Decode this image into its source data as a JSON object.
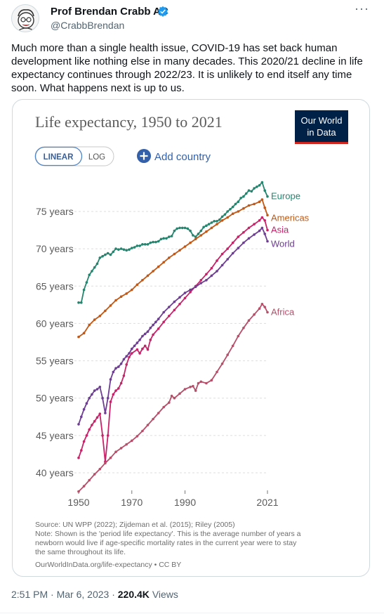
{
  "tweet": {
    "author_name": "Prof Brendan Crabb AC",
    "author_handle": "@CrabbBrendan",
    "text": "Much more than a single health issue, COVID-19 has set back human development like nothing else in many decades. This 2020/21 decline in life expectancy continues through 2022/23. It is unlikely to end itself any time soon. What happens next is up to us.",
    "time": "2:51 PM",
    "separator": "·",
    "date": "Mar 6, 2023",
    "views_count": "220.4K",
    "views_label": "Views",
    "more_icon": "more-horizontal-icon",
    "verified_color": "#1d9bf0"
  },
  "chart_card": {
    "logo_line1": "Our World",
    "logo_line2": "in Data",
    "logo_bg": "#002147",
    "logo_accent": "#ce261e",
    "toggle_linear": "LINEAR",
    "toggle_log": "LOG",
    "add_country": "Add country",
    "add_country_color": "#3360a9",
    "source_line": "Source: UN WPP (2022); Zijdeman et al. (2015); Riley (2005)",
    "note_lines": [
      "Note: Shown is the 'period life expectancy'. This is the average number of years a",
      "newborn would live if age-specific mortality rates in the current year were to stay",
      "the same throughout its life."
    ],
    "footer": "OurWorldInData.org/life-expectancy • CC BY"
  },
  "chart_data": {
    "type": "line",
    "title": "Life expectancy, 1950 to 2021",
    "scale": "linear",
    "grid": true,
    "xlim": [
      1950,
      2021
    ],
    "ylim": [
      37,
      80
    ],
    "x_ticks": [
      1950,
      1970,
      1990,
      2021
    ],
    "x_tick_labels": [
      "1950",
      "1970",
      "1990",
      "2021"
    ],
    "y_ticks": [
      40,
      45,
      50,
      55,
      60,
      65,
      70,
      75
    ],
    "y_tick_labels": [
      "40 years",
      "45 years",
      "50 years",
      "55 years",
      "60 years",
      "65 years",
      "70 years",
      "75 years"
    ],
    "legend_placement": "right-end-labels",
    "series": [
      {
        "name": "Europe",
        "color": "#26856f",
        "points": [
          [
            1950,
            62.8
          ],
          [
            1951,
            62.8
          ],
          [
            1952,
            64.5
          ],
          [
            1953,
            65.5
          ],
          [
            1954,
            66.5
          ],
          [
            1955,
            67.0
          ],
          [
            1956,
            67.5
          ],
          [
            1957,
            68.0
          ],
          [
            1958,
            68.8
          ],
          [
            1959,
            69.0
          ],
          [
            1960,
            69.2
          ],
          [
            1961,
            69.4
          ],
          [
            1962,
            69.2
          ],
          [
            1963,
            69.6
          ],
          [
            1964,
            70.0
          ],
          [
            1965,
            69.9
          ],
          [
            1966,
            70.0
          ],
          [
            1967,
            69.9
          ],
          [
            1968,
            69.8
          ],
          [
            1969,
            69.9
          ],
          [
            1970,
            70.1
          ],
          [
            1971,
            70.2
          ],
          [
            1972,
            70.4
          ],
          [
            1973,
            70.4
          ],
          [
            1974,
            70.6
          ],
          [
            1975,
            70.6
          ],
          [
            1976,
            70.6
          ],
          [
            1977,
            70.8
          ],
          [
            1978,
            70.9
          ],
          [
            1979,
            70.9
          ],
          [
            1980,
            71.0
          ],
          [
            1981,
            71.3
          ],
          [
            1982,
            71.4
          ],
          [
            1983,
            71.4
          ],
          [
            1984,
            71.6
          ],
          [
            1985,
            71.7
          ],
          [
            1986,
            72.4
          ],
          [
            1987,
            72.7
          ],
          [
            1988,
            72.8
          ],
          [
            1989,
            72.8
          ],
          [
            1990,
            72.8
          ],
          [
            1991,
            72.7
          ],
          [
            1992,
            72.4
          ],
          [
            1993,
            71.8
          ],
          [
            1994,
            71.6
          ],
          [
            1995,
            72.0
          ],
          [
            1996,
            72.4
          ],
          [
            1997,
            72.9
          ],
          [
            1998,
            73.1
          ],
          [
            1999,
            73.3
          ],
          [
            2000,
            73.5
          ],
          [
            2001,
            73.7
          ],
          [
            2002,
            73.7
          ],
          [
            2003,
            73.9
          ],
          [
            2004,
            74.3
          ],
          [
            2005,
            74.6
          ],
          [
            2006,
            75.0
          ],
          [
            2007,
            75.3
          ],
          [
            2008,
            75.6
          ],
          [
            2009,
            76.0
          ],
          [
            2010,
            76.3
          ],
          [
            2011,
            76.8
          ],
          [
            2012,
            77.0
          ],
          [
            2013,
            77.4
          ],
          [
            2014,
            77.8
          ],
          [
            2015,
            77.7
          ],
          [
            2016,
            78.1
          ],
          [
            2017,
            78.3
          ],
          [
            2018,
            78.5
          ],
          [
            2019,
            78.9
          ],
          [
            2020,
            77.8
          ],
          [
            2021,
            77.0
          ]
        ]
      },
      {
        "name": "Americas",
        "color": "#c05917",
        "points": [
          [
            1950,
            58.2
          ],
          [
            1952,
            58.7
          ],
          [
            1954,
            59.8
          ],
          [
            1956,
            60.5
          ],
          [
            1958,
            61.0
          ],
          [
            1960,
            61.7
          ],
          [
            1962,
            62.4
          ],
          [
            1964,
            63.1
          ],
          [
            1966,
            63.6
          ],
          [
            1968,
            64.0
          ],
          [
            1970,
            64.5
          ],
          [
            1972,
            65.2
          ],
          [
            1974,
            65.8
          ],
          [
            1976,
            66.4
          ],
          [
            1978,
            67.0
          ],
          [
            1980,
            67.6
          ],
          [
            1982,
            68.2
          ],
          [
            1984,
            68.8
          ],
          [
            1986,
            69.3
          ],
          [
            1988,
            69.8
          ],
          [
            1990,
            70.3
          ],
          [
            1992,
            70.8
          ],
          [
            1994,
            71.3
          ],
          [
            1996,
            71.8
          ],
          [
            1998,
            72.3
          ],
          [
            2000,
            72.8
          ],
          [
            2002,
            73.3
          ],
          [
            2004,
            73.8
          ],
          [
            2006,
            74.2
          ],
          [
            2008,
            74.7
          ],
          [
            2010,
            75.0
          ],
          [
            2012,
            75.4
          ],
          [
            2014,
            75.8
          ],
          [
            2016,
            76.0
          ],
          [
            2018,
            76.3
          ],
          [
            2019,
            76.6
          ],
          [
            2020,
            75.5
          ],
          [
            2021,
            74.5
          ]
        ]
      },
      {
        "name": "Asia",
        "color": "#c62369",
        "points": [
          [
            1950,
            42.0
          ],
          [
            1951,
            43.0
          ],
          [
            1952,
            44.2
          ],
          [
            1953,
            45.0
          ],
          [
            1954,
            45.8
          ],
          [
            1955,
            46.4
          ],
          [
            1956,
            46.9
          ],
          [
            1957,
            47.4
          ],
          [
            1958,
            47.9
          ],
          [
            1959,
            45.0
          ],
          [
            1960,
            41.5
          ],
          [
            1961,
            45.0
          ],
          [
            1962,
            49.5
          ],
          [
            1963,
            50.5
          ],
          [
            1964,
            51.0
          ],
          [
            1965,
            51.3
          ],
          [
            1966,
            52.0
          ],
          [
            1967,
            53.0
          ],
          [
            1968,
            54.5
          ],
          [
            1969,
            55.5
          ],
          [
            1970,
            56.0
          ],
          [
            1972,
            56.5
          ],
          [
            1973,
            56.0
          ],
          [
            1974,
            56.6
          ],
          [
            1975,
            57.0
          ],
          [
            1976,
            56.5
          ],
          [
            1977,
            57.8
          ],
          [
            1978,
            58.5
          ],
          [
            1980,
            59.3
          ],
          [
            1982,
            60.2
          ],
          [
            1984,
            61.0
          ],
          [
            1986,
            61.8
          ],
          [
            1988,
            62.6
          ],
          [
            1990,
            63.4
          ],
          [
            1992,
            64.2
          ],
          [
            1994,
            65.0
          ],
          [
            1996,
            65.8
          ],
          [
            1998,
            66.6
          ],
          [
            2000,
            67.4
          ],
          [
            2002,
            68.4
          ],
          [
            2004,
            69.3
          ],
          [
            2006,
            70.0
          ],
          [
            2008,
            70.8
          ],
          [
            2010,
            71.6
          ],
          [
            2012,
            72.2
          ],
          [
            2014,
            72.8
          ],
          [
            2016,
            73.3
          ],
          [
            2018,
            73.8
          ],
          [
            2019,
            74.2
          ],
          [
            2020,
            73.8
          ],
          [
            2021,
            72.5
          ]
        ]
      },
      {
        "name": "World",
        "color": "#6d3e91",
        "points": [
          [
            1950,
            46.5
          ],
          [
            1951,
            47.5
          ],
          [
            1952,
            48.5
          ],
          [
            1953,
            49.3
          ],
          [
            1954,
            50.0
          ],
          [
            1955,
            50.5
          ],
          [
            1956,
            51.0
          ],
          [
            1957,
            51.2
          ],
          [
            1958,
            51.5
          ],
          [
            1959,
            50.0
          ],
          [
            1960,
            48.0
          ],
          [
            1961,
            50.0
          ],
          [
            1962,
            52.5
          ],
          [
            1963,
            53.5
          ],
          [
            1964,
            54.0
          ],
          [
            1965,
            54.2
          ],
          [
            1966,
            54.6
          ],
          [
            1967,
            55.2
          ],
          [
            1968,
            55.6
          ],
          [
            1969,
            56.0
          ],
          [
            1970,
            56.6
          ],
          [
            1971,
            57.0
          ],
          [
            1972,
            57.4
          ],
          [
            1973,
            57.8
          ],
          [
            1974,
            58.3
          ],
          [
            1975,
            58.6
          ],
          [
            1976,
            58.9
          ],
          [
            1977,
            59.4
          ],
          [
            1978,
            59.8
          ],
          [
            1979,
            60.2
          ],
          [
            1980,
            60.6
          ],
          [
            1982,
            61.5
          ],
          [
            1984,
            62.2
          ],
          [
            1986,
            62.9
          ],
          [
            1988,
            63.5
          ],
          [
            1990,
            64.1
          ],
          [
            1992,
            64.5
          ],
          [
            1994,
            64.9
          ],
          [
            1996,
            65.4
          ],
          [
            1998,
            65.8
          ],
          [
            2000,
            66.4
          ],
          [
            2002,
            67.0
          ],
          [
            2004,
            67.8
          ],
          [
            2006,
            68.6
          ],
          [
            2008,
            69.4
          ],
          [
            2010,
            70.1
          ],
          [
            2012,
            70.8
          ],
          [
            2014,
            71.4
          ],
          [
            2016,
            71.9
          ],
          [
            2018,
            72.4
          ],
          [
            2019,
            72.8
          ],
          [
            2020,
            72.0
          ],
          [
            2021,
            71.0
          ]
        ]
      },
      {
        "name": "Africa",
        "color": "#b64f6a",
        "points": [
          [
            1950,
            37.5
          ],
          [
            1952,
            38.2
          ],
          [
            1954,
            39.0
          ],
          [
            1956,
            39.8
          ],
          [
            1958,
            40.5
          ],
          [
            1960,
            41.3
          ],
          [
            1962,
            42.0
          ],
          [
            1964,
            42.8
          ],
          [
            1966,
            43.3
          ],
          [
            1968,
            43.8
          ],
          [
            1970,
            44.3
          ],
          [
            1972,
            44.9
          ],
          [
            1974,
            45.6
          ],
          [
            1976,
            46.4
          ],
          [
            1978,
            47.2
          ],
          [
            1980,
            48.0
          ],
          [
            1982,
            48.8
          ],
          [
            1984,
            49.4
          ],
          [
            1985,
            50.3
          ],
          [
            1986,
            50.0
          ],
          [
            1988,
            50.6
          ],
          [
            1990,
            51.2
          ],
          [
            1992,
            51.5
          ],
          [
            1993,
            51.6
          ],
          [
            1994,
            51.0
          ],
          [
            1995,
            52.0
          ],
          [
            1996,
            52.2
          ],
          [
            1998,
            52.0
          ],
          [
            2000,
            52.4
          ],
          [
            2002,
            53.5
          ],
          [
            2004,
            54.6
          ],
          [
            2006,
            55.8
          ],
          [
            2008,
            57.0
          ],
          [
            2010,
            58.3
          ],
          [
            2012,
            59.4
          ],
          [
            2014,
            60.4
          ],
          [
            2016,
            61.2
          ],
          [
            2018,
            62.0
          ],
          [
            2019,
            62.6
          ],
          [
            2020,
            62.2
          ],
          [
            2021,
            61.5
          ]
        ]
      }
    ]
  }
}
